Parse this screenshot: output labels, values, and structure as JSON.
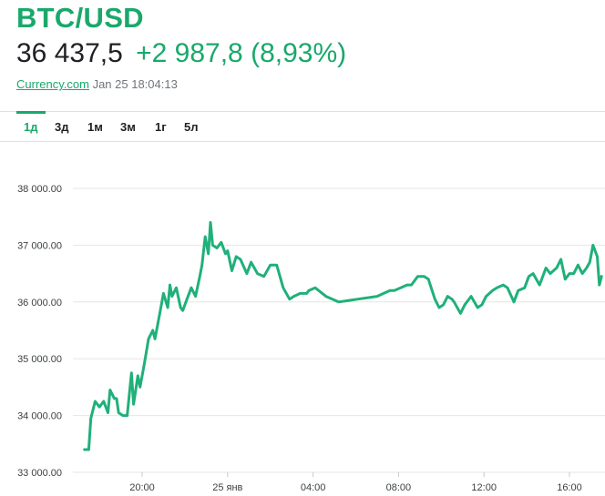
{
  "header": {
    "title": "BTC/USD",
    "price": "36 437,5",
    "change": "+2 987,8 (8,93%)",
    "source": "Currency.com",
    "timestamp": "Jan 25 18:04:13"
  },
  "tabs": [
    {
      "label": "1д",
      "active": true
    },
    {
      "label": "3д",
      "active": false
    },
    {
      "label": "1м",
      "active": false
    },
    {
      "label": "3м",
      "active": false
    },
    {
      "label": "1г",
      "active": false
    },
    {
      "label": "5л",
      "active": false
    }
  ],
  "colors": {
    "accent": "#1aa86b",
    "line": "#20b07a",
    "grid": "#e6e6e6"
  },
  "chart_data": {
    "type": "line",
    "grid": true,
    "ylim": [
      33000,
      38000
    ],
    "y_ticks": [
      33000,
      34000,
      35000,
      36000,
      37000,
      38000
    ],
    "y_tick_labels": [
      "33 000.00",
      "34 000.00",
      "35 000.00",
      "36 000.00",
      "37 000.00",
      "38 000.00"
    ],
    "x_ticks": [
      20,
      24,
      28,
      32,
      36,
      40
    ],
    "x_tick_labels": [
      "20:00",
      "25 янв",
      "04:00",
      "08:00",
      "12:00",
      "16:00"
    ],
    "series": [
      {
        "x": [
          17.3,
          17.5,
          17.6,
          17.8,
          18.0,
          18.2,
          18.4,
          18.5,
          18.7,
          18.8,
          18.9,
          19.1,
          19.3,
          19.5,
          19.6,
          19.8,
          19.9,
          20.1,
          20.3,
          20.5,
          20.6,
          20.8,
          21.0,
          21.2,
          21.3,
          21.4,
          21.6,
          21.8,
          21.9,
          22.1,
          22.3,
          22.5,
          22.7,
          22.8,
          22.95,
          23.1,
          23.2,
          23.3,
          23.5,
          23.7,
          23.9,
          24.0,
          24.2,
          24.4,
          24.6,
          24.9,
          25.1,
          25.4,
          25.7,
          26.0,
          26.3,
          26.6,
          26.9,
          27.1,
          27.4,
          27.7,
          27.8,
          28.1,
          28.6,
          29.2,
          30.1,
          31.0,
          31.3,
          31.6,
          31.8,
          32.1,
          32.4,
          32.6,
          32.9,
          33.2,
          33.4,
          33.7,
          33.9,
          34.1,
          34.3,
          34.5,
          34.6,
          34.9,
          35.1,
          35.4,
          35.7,
          35.9,
          36.1,
          36.4,
          36.6,
          36.9,
          37.1,
          37.4,
          37.6,
          37.9,
          38.1,
          38.3,
          38.6,
          38.9,
          39.1,
          39.4,
          39.6,
          39.8,
          40.0,
          40.2,
          40.4,
          40.6,
          40.8,
          40.95,
          41.1,
          41.3,
          41.4,
          41.5
        ],
        "values": [
          33400,
          33400,
          33950,
          34250,
          34150,
          34250,
          34050,
          34450,
          34300,
          34300,
          34050,
          34000,
          34000,
          34750,
          34200,
          34700,
          34500,
          34900,
          35350,
          35500,
          35350,
          35750,
          36150,
          35900,
          36300,
          36100,
          36250,
          35900,
          35850,
          36050,
          36250,
          36100,
          36450,
          36650,
          37150,
          36850,
          37400,
          37000,
          36950,
          37050,
          36850,
          36900,
          36550,
          36800,
          36750,
          36500,
          36700,
          36500,
          36450,
          36650,
          36650,
          36250,
          36050,
          36100,
          36150,
          36150,
          36200,
          36250,
          36100,
          36000,
          36050,
          36100,
          36150,
          36200,
          36200,
          36250,
          36300,
          36300,
          36450,
          36450,
          36400,
          36050,
          35900,
          35950,
          36100,
          36050,
          36000,
          35800,
          35950,
          36100,
          35900,
          35950,
          36100,
          36200,
          36250,
          36300,
          36250,
          36000,
          36200,
          36250,
          36450,
          36500,
          36300,
          36600,
          36500,
          36600,
          36750,
          36400,
          36500,
          36500,
          36650,
          36500,
          36600,
          36700,
          37000,
          36800,
          36300,
          36450
        ]
      }
    ]
  }
}
